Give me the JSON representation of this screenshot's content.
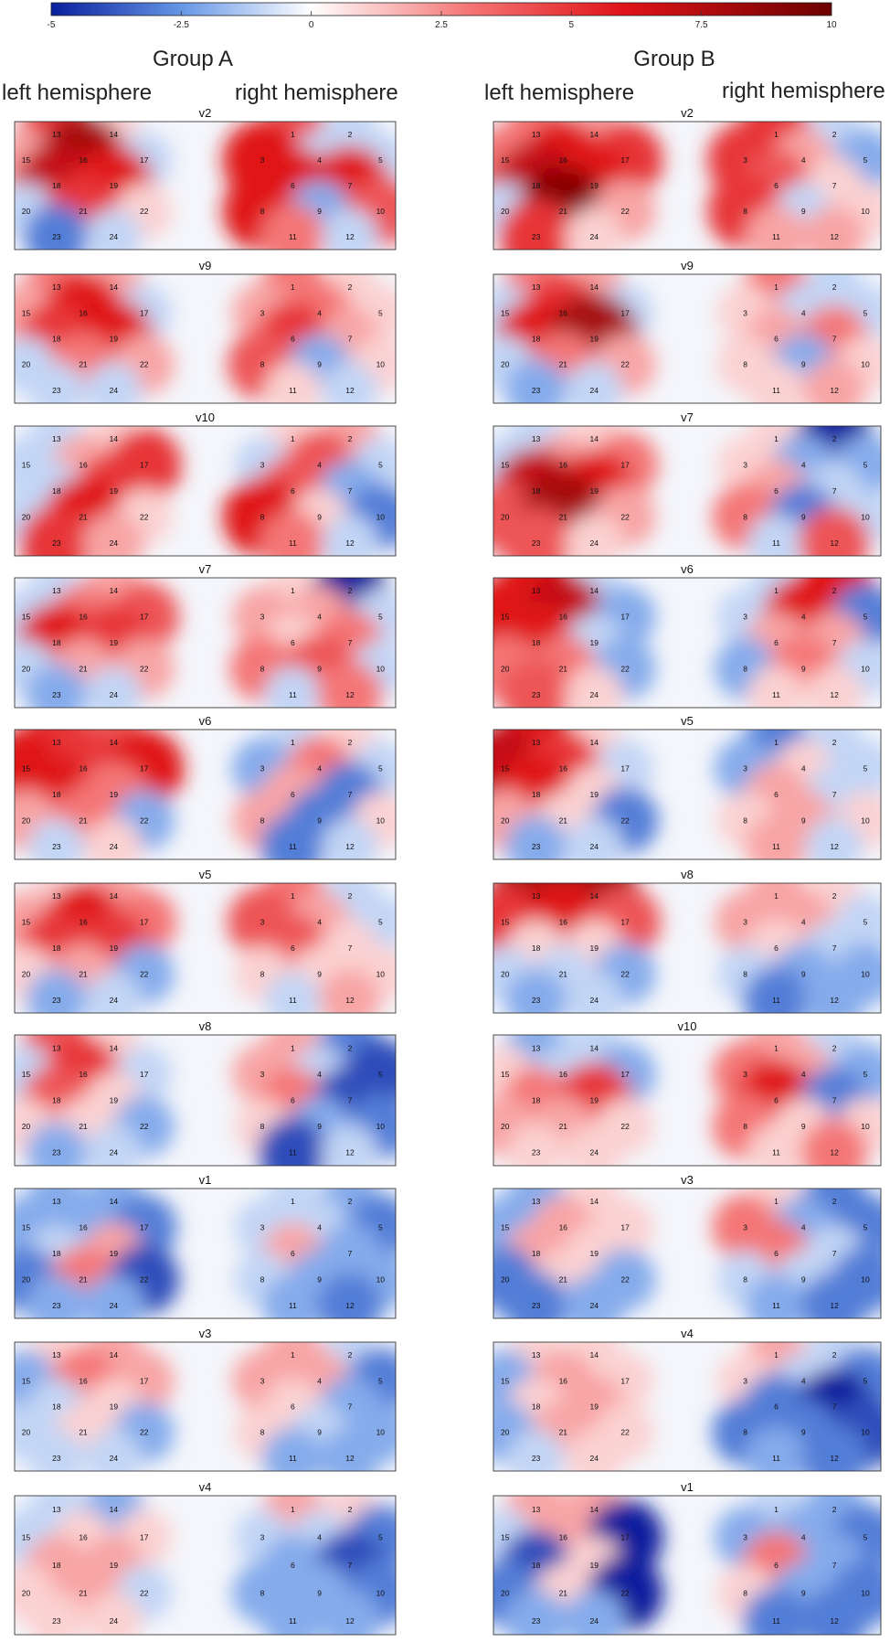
{
  "colorbar": {
    "min": -5,
    "max": 10,
    "ticks": [
      "-5",
      "-2.5",
      "0",
      "2.5",
      "5",
      "7.5",
      "10"
    ],
    "colors": {
      "neg_max": "#081e9c",
      "zero": "#ffffff",
      "pos_max": "#6b0000"
    }
  },
  "groups": [
    {
      "name": "Group A",
      "left_label": "left hemisphere",
      "right_label": "right hemisphere"
    },
    {
      "name": "Group B",
      "left_label": "left hemisphere",
      "right_label": "right hemisphere"
    }
  ],
  "chart_data": {
    "type": "heatmap",
    "value_range": [
      -5,
      10
    ],
    "channels": [
      "1",
      "2",
      "3",
      "4",
      "5",
      "6",
      "7",
      "8",
      "9",
      "10",
      "11",
      "12",
      "13",
      "14",
      "15",
      "16",
      "17",
      "18",
      "19",
      "20",
      "21",
      "22",
      "23",
      "24"
    ],
    "panels": [
      {
        "group": "Group A",
        "title": "v2",
        "values": {
          "1": 4,
          "2": -1,
          "3": 6,
          "4": -1,
          "5": -1,
          "6": 6,
          "7": 6,
          "8": 6,
          "9": -2,
          "10": 4,
          "11": 3,
          "12": -1,
          "13": 5,
          "14": 1,
          "15": 2,
          "16": 8,
          "17": -1,
          "18": 7,
          "19": 6,
          "20": -1,
          "21": 5,
          "22": 1,
          "23": -3,
          "24": -1
        }
      },
      {
        "group": "Group A",
        "title": "v9",
        "values": {
          "1": 3,
          "2": 1,
          "3": 2,
          "4": 3,
          "5": 1,
          "6": 5,
          "7": 2,
          "8": 4,
          "9": -2,
          "10": 1,
          "11": 1,
          "12": -1,
          "13": 3,
          "14": 2,
          "15": 2,
          "16": 6,
          "17": -1,
          "18": 5,
          "19": 6,
          "20": -1,
          "21": 3,
          "22": 2,
          "23": -1,
          "24": -1
        }
      },
      {
        "group": "Group A",
        "title": "v10",
        "values": {
          "1": 1,
          "2": 2,
          "3": -1,
          "4": 4,
          "5": -1,
          "6": 4,
          "7": -2,
          "8": 6,
          "9": 1,
          "10": -3,
          "11": 3,
          "12": -1,
          "13": -1,
          "14": 1,
          "15": -1,
          "16": 2,
          "17": 5,
          "18": -1,
          "19": 5,
          "20": -1,
          "21": 6,
          "22": 1,
          "23": 5,
          "24": 2
        }
      },
      {
        "group": "Group A",
        "title": "v7",
        "values": {
          "1": 1,
          "2": -5,
          "3": 2,
          "4": 2,
          "5": -1,
          "6": 1,
          "7": 3,
          "8": 3,
          "9": 4,
          "10": -1,
          "11": -1,
          "12": 3,
          "13": -1,
          "14": 2,
          "15": -1,
          "16": 3,
          "17": 4,
          "18": 6,
          "19": 5,
          "20": -1,
          "21": 2,
          "22": 2,
          "23": -2,
          "24": -1
        }
      },
      {
        "group": "Group A",
        "title": "v6",
        "values": {
          "1": -1,
          "2": 1,
          "3": -2,
          "4": 3,
          "5": -1,
          "6": 2,
          "7": -3,
          "8": 2,
          "9": -3,
          "10": 1,
          "11": -3,
          "12": -1,
          "13": 5,
          "14": 4,
          "15": 6,
          "16": 5,
          "17": 6,
          "18": 6,
          "19": 3,
          "20": 2,
          "21": 3,
          "22": -2,
          "23": -1,
          "24": 1
        }
      },
      {
        "group": "Group A",
        "title": "v5",
        "values": {
          "1": 3,
          "2": -1,
          "3": 4,
          "4": 2,
          "5": -1,
          "6": 4,
          "7": 1,
          "8": 1,
          "9": 1,
          "10": 1,
          "11": -1,
          "12": 2,
          "13": 1,
          "14": 2,
          "15": 2,
          "16": 6,
          "17": 3,
          "18": 5,
          "19": 5,
          "20": 1,
          "21": 2,
          "22": -2,
          "23": -2,
          "24": -1
        }
      },
      {
        "group": "Group A",
        "title": "v8",
        "values": {
          "1": 2,
          "2": -3,
          "3": 2,
          "4": -1,
          "5": -4,
          "6": 3,
          "7": -4,
          "8": 1,
          "9": -2,
          "10": -3,
          "11": -4,
          "12": -1,
          "13": 4,
          "14": 1,
          "15": -1,
          "16": 5,
          "17": -1,
          "18": 4,
          "19": 1,
          "20": 1,
          "21": 1,
          "22": -2,
          "23": -2,
          "24": -1
        }
      },
      {
        "group": "Group A",
        "title": "v1",
        "values": {
          "1": -1,
          "2": -2,
          "3": -1,
          "4": -1,
          "5": -3,
          "6": 2,
          "7": -2,
          "8": -1,
          "9": -2,
          "10": -2,
          "11": -2,
          "12": -3,
          "13": -2,
          "14": -2,
          "15": -2,
          "16": -2,
          "17": -3,
          "18": -1,
          "19": 2,
          "20": -3,
          "21": 3,
          "22": -4,
          "23": -2,
          "24": -2
        }
      },
      {
        "group": "Group A",
        "title": "v3",
        "values": {
          "1": 2,
          "2": -1,
          "3": 2,
          "4": 2,
          "5": -3,
          "6": 1,
          "7": -2,
          "8": 1,
          "9": -1,
          "10": -2,
          "11": -2,
          "12": -2,
          "13": 1,
          "14": 2,
          "15": -2,
          "16": 3,
          "17": 2,
          "18": -1,
          "19": 1,
          "20": -1,
          "21": 1,
          "22": -2,
          "23": -1,
          "24": -1
        }
      },
      {
        "group": "Group A",
        "title": "v4",
        "values": {
          "1": 2,
          "2": 1,
          "3": -1,
          "4": -1,
          "5": -3,
          "6": -2,
          "7": -4,
          "8": -2,
          "9": -2,
          "10": -3,
          "11": -2,
          "12": -2,
          "13": -1,
          "14": -2,
          "15": -1,
          "16": 1,
          "17": 1,
          "18": 2,
          "19": 2,
          "20": 1,
          "21": 2,
          "22": -1,
          "23": 1,
          "24": 1
        }
      },
      {
        "group": "Group B",
        "title": "v2",
        "values": {
          "1": 5,
          "2": -1,
          "3": 5,
          "4": 2,
          "5": -2,
          "6": 4,
          "7": 1,
          "8": 5,
          "9": -1,
          "10": 1,
          "11": 2,
          "12": 2,
          "13": 3,
          "14": 2,
          "15": 3,
          "16": 6,
          "17": 5,
          "18": 7,
          "19": 6,
          "20": -1,
          "21": 9,
          "22": 2,
          "23": 5,
          "24": 1
        }
      },
      {
        "group": "Group B",
        "title": "v9",
        "values": {
          "1": 3,
          "2": -1,
          "3": 1,
          "4": -1,
          "5": -1,
          "6": 2,
          "7": 3,
          "8": 1,
          "9": -2,
          "10": 1,
          "11": 1,
          "12": 2,
          "13": 3,
          "14": 2,
          "15": -1,
          "16": 5,
          "17": -1,
          "18": 6,
          "19": 8,
          "20": -1,
          "21": 3,
          "22": 2,
          "23": -2,
          "24": -1
        }
      },
      {
        "group": "Group B",
        "title": "v7",
        "values": {
          "1": 1,
          "2": -5,
          "3": 1,
          "4": -2,
          "5": -2,
          "6": 2,
          "7": -1,
          "8": 3,
          "9": -3,
          "10": -1,
          "11": -1,
          "12": 4,
          "13": -1,
          "14": 1,
          "15": -1,
          "16": 2,
          "17": 3,
          "18": 7,
          "19": 6,
          "20": 4,
          "21": 8,
          "22": 2,
          "23": 4,
          "24": 1
        }
      },
      {
        "group": "Group B",
        "title": "v6",
        "values": {
          "1": -1,
          "2": 6,
          "3": -1,
          "4": 6,
          "5": -3,
          "6": 2,
          "7": 2,
          "8": -2,
          "9": 3,
          "10": -1,
          "11": 1,
          "12": 1,
          "13": 6,
          "14": -1,
          "15": 6,
          "16": 7,
          "17": -2,
          "18": 6,
          "19": -1,
          "20": 3,
          "21": 3,
          "22": -2,
          "23": 4,
          "24": 1
        }
      },
      {
        "group": "Group B",
        "title": "v5",
        "values": {
          "1": -3,
          "2": -1,
          "3": -2,
          "4": 1,
          "5": -1,
          "6": 2,
          "7": -1,
          "8": 1,
          "9": 2,
          "10": 1,
          "11": 2,
          "12": -1,
          "13": 6,
          "14": 1,
          "15": 7,
          "16": 5,
          "17": -1,
          "18": 6,
          "19": 1,
          "20": 2,
          "21": 1,
          "22": -3,
          "23": -2,
          "24": -1
        }
      },
      {
        "group": "Group B",
        "title": "v8",
        "values": {
          "1": 2,
          "2": 1,
          "3": 2,
          "4": 2,
          "5": -1,
          "6": 1,
          "7": -1,
          "8": -1,
          "9": -2,
          "10": -2,
          "11": -3,
          "12": -2,
          "13": 8,
          "14": 8,
          "15": 5,
          "16": 6,
          "17": 4,
          "18": 1,
          "19": 1,
          "20": -1,
          "21": -1,
          "22": -2,
          "23": -2,
          "24": -1
        }
      },
      {
        "group": "Group B",
        "title": "v10",
        "values": {
          "1": 2,
          "2": -1,
          "3": 3,
          "4": 2,
          "5": -2,
          "6": 6,
          "7": -3,
          "8": 3,
          "9": 1,
          "10": 1,
          "11": 1,
          "12": 3,
          "13": -2,
          "14": -1,
          "15": 1,
          "16": -1,
          "17": -2,
          "18": 3,
          "19": 5,
          "20": 2,
          "21": 2,
          "22": 1,
          "23": 1,
          "24": 1
        }
      },
      {
        "group": "Group B",
        "title": "v3",
        "values": {
          "1": 1,
          "2": -3,
          "3": 3,
          "4": -2,
          "5": -3,
          "6": 3,
          "7": -1,
          "8": -1,
          "9": -1,
          "10": -3,
          "11": -2,
          "12": -3,
          "13": -2,
          "14": 1,
          "15": -2,
          "16": 2,
          "17": 1,
          "18": 2,
          "19": 1,
          "20": -3,
          "21": 1,
          "22": -2,
          "23": -3,
          "24": -2
        }
      },
      {
        "group": "Group B",
        "title": "v4",
        "values": {
          "1": 2,
          "2": -1,
          "3": 1,
          "4": -1,
          "5": -3,
          "6": -3,
          "7": -5,
          "8": -3,
          "9": -3,
          "10": -4,
          "11": -2,
          "12": -3,
          "13": 1,
          "14": 1,
          "15": -2,
          "16": 2,
          "17": 1,
          "18": 1,
          "19": 2,
          "20": -2,
          "21": 2,
          "22": 1,
          "23": -1,
          "24": 1
        }
      },
      {
        "group": "Group B",
        "title": "v1",
        "values": {
          "1": -1,
          "2": -2,
          "3": -2,
          "4": -2,
          "5": -3,
          "6": 3,
          "7": -2,
          "8": 1,
          "9": -2,
          "10": -3,
          "11": -3,
          "12": -3,
          "13": 2,
          "14": 2,
          "15": -1,
          "16": 2,
          "17": -5,
          "18": -4,
          "19": 1,
          "20": -3,
          "21": 1,
          "22": -5,
          "23": -2,
          "24": -2
        }
      }
    ]
  }
}
